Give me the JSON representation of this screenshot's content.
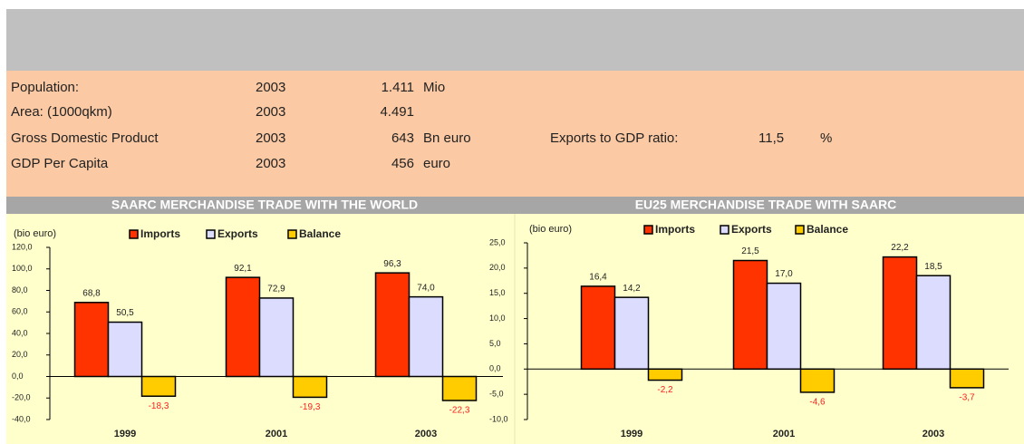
{
  "info": {
    "rows": [
      {
        "label": "Population:",
        "year": "2003",
        "value": "1.411",
        "unit": "Mio"
      },
      {
        "label": "Area: (1000qkm)",
        "year": "2003",
        "value": "4.491"
      },
      {
        "label": "Gross Domestic Product",
        "year": "2003",
        "value": "643",
        "unit": "Bn euro"
      },
      {
        "label": "GDP Per Capita",
        "year": "2003",
        "value": "456",
        "unit": "euro"
      }
    ],
    "ratio": {
      "label": "Exports to GDP ratio:",
      "value": "11,5",
      "unit": "%"
    }
  },
  "chart_data": [
    {
      "type": "bar",
      "title": "SAARC MERCHANDISE TRADE WITH THE WORLD",
      "ylabel": "(bio euro)",
      "categories": [
        "1999",
        "2001",
        "2003"
      ],
      "series": [
        {
          "name": "Imports",
          "color": "#ff3300",
          "values": [
            68.8,
            92.1,
            96.3
          ],
          "value_labels": [
            "68,8",
            "92,1",
            "96,3"
          ]
        },
        {
          "name": "Exports",
          "color": "#dcdcff",
          "values": [
            50.5,
            72.9,
            74.0
          ],
          "value_labels": [
            "50,5",
            "72,9",
            "74,0"
          ]
        },
        {
          "name": "Balance",
          "color": "#ffcc00",
          "values": [
            -18.3,
            -19.3,
            -22.3
          ],
          "value_labels": [
            "-18,3",
            "-19,3",
            "-22,3"
          ]
        }
      ],
      "ylim": [
        -40,
        120
      ],
      "yticks": [
        {
          "value": -40,
          "label": "-40,0"
        },
        {
          "value": -20,
          "label": "-20,0"
        },
        {
          "value": 0,
          "label": "0,0"
        },
        {
          "value": 20,
          "label": "20,0"
        },
        {
          "value": 40,
          "label": "40,0"
        },
        {
          "value": 60,
          "label": "60,0"
        },
        {
          "value": 80,
          "label": "80,0"
        },
        {
          "value": 100,
          "label": "100,0"
        },
        {
          "value": 120,
          "label": "120,0"
        }
      ]
    },
    {
      "type": "bar",
      "title": "EU25 MERCHANDISE TRADE WITH  SAARC",
      "ylabel": "(bio euro)",
      "categories": [
        "1999",
        "2001",
        "2003"
      ],
      "series": [
        {
          "name": "Imports",
          "color": "#ff3300",
          "values": [
            16.4,
            21.5,
            22.2
          ],
          "value_labels": [
            "16,4",
            "21,5",
            "22,2"
          ]
        },
        {
          "name": "Exports",
          "color": "#dcdcff",
          "values": [
            14.2,
            17.0,
            18.5
          ],
          "value_labels": [
            "14,2",
            "17,0",
            "18,5"
          ]
        },
        {
          "name": "Balance",
          "color": "#ffcc00",
          "values": [
            -2.2,
            -4.6,
            -3.7
          ],
          "value_labels": [
            "-2,2",
            "-4,6",
            "-3,7"
          ]
        }
      ],
      "ylim": [
        -10,
        25
      ],
      "yticks": [
        {
          "value": -10,
          "label": "-10,0"
        },
        {
          "value": -5,
          "label": "-5,0"
        },
        {
          "value": 0,
          "label": "0,0"
        },
        {
          "value": 5,
          "label": "5,0"
        },
        {
          "value": 10,
          "label": "10,0"
        },
        {
          "value": 15,
          "label": "15,0"
        },
        {
          "value": 20,
          "label": "20,0"
        },
        {
          "value": 25,
          "label": "25,0"
        }
      ]
    }
  ]
}
